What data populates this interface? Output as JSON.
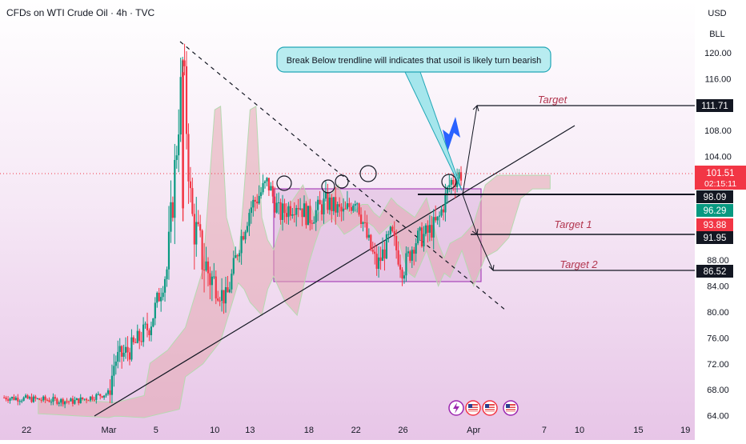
{
  "header": {
    "title": "CFDs on WTI Crude Oil · 4h · TVC"
  },
  "currency": {
    "primary": "USD",
    "secondary": "BLL"
  },
  "chart_data": {
    "type": "candlestick",
    "y_ticks": [
      "120.00",
      "116.00",
      "112.00",
      "108.00",
      "104.00",
      "100.00",
      "96.00",
      "92.00",
      "88.00",
      "84.00",
      "80.00",
      "76.00",
      "72.00",
      "68.00",
      "64.00"
    ],
    "x_ticks": [
      {
        "label": "22",
        "day": -7
      },
      {
        "label": "Mar",
        "day": 0
      },
      {
        "label": "5",
        "day": 4
      },
      {
        "label": "10",
        "day": 9
      },
      {
        "label": "13",
        "day": 12
      },
      {
        "label": "18",
        "day": 17
      },
      {
        "label": "22",
        "day": 21
      },
      {
        "label": "26",
        "day": 25
      },
      {
        "label": "Apr",
        "day": 31
      },
      {
        "label": "7",
        "day": 37
      },
      {
        "label": "10",
        "day": 40
      },
      {
        "label": "15",
        "day": 45
      },
      {
        "label": "19",
        "day": 49
      }
    ],
    "ylim": [
      63.5,
      122.5
    ],
    "price_tags": {
      "current": {
        "price": "101.51",
        "timer": "02:15:11",
        "value": 101.51
      },
      "target": {
        "label": "111.71",
        "value": 111.71
      },
      "p98": {
        "label": "98.09",
        "value": 98.09
      },
      "p96": {
        "label": "96.29",
        "value": 96.29
      },
      "p93": {
        "label": "93.88",
        "value": 93.88
      },
      "p91": {
        "label": "91.95",
        "value": 91.95
      },
      "p86": {
        "label": "86.52",
        "value": 86.52
      }
    },
    "annotations": {
      "callout": "Break Below trendline will indicates that usoil is likely turn bearish",
      "target": "Target",
      "target1": "Target 1",
      "target2": "Target 2"
    },
    "key_points": [
      {
        "day": -8.9,
        "value": 66.8
      },
      {
        "day": -3,
        "value": 66.2
      },
      {
        "day": 0,
        "value": 67.5
      },
      {
        "day": 0.5,
        "value": 72.5
      },
      {
        "day": 2,
        "value": 74.5
      },
      {
        "day": 3.5,
        "value": 78
      },
      {
        "day": 5,
        "value": 87
      },
      {
        "day": 6.3,
        "value": 119
      },
      {
        "day": 7,
        "value": 95
      },
      {
        "day": 8,
        "value": 88
      },
      {
        "day": 9,
        "value": 84
      },
      {
        "day": 10,
        "value": 82
      },
      {
        "day": 11,
        "value": 90
      },
      {
        "day": 12,
        "value": 96
      },
      {
        "day": 13.5,
        "value": 100
      },
      {
        "day": 14.5,
        "value": 95
      },
      {
        "day": 16,
        "value": 97
      },
      {
        "day": 17,
        "value": 94.5
      },
      {
        "day": 18.5,
        "value": 97
      },
      {
        "day": 20,
        "value": 95
      },
      {
        "day": 21,
        "value": 98
      },
      {
        "day": 22,
        "value": 91
      },
      {
        "day": 22.8,
        "value": 87
      },
      {
        "day": 24,
        "value": 92
      },
      {
        "day": 25,
        "value": 86.5
      },
      {
        "day": 26,
        "value": 91
      },
      {
        "day": 27,
        "value": 92
      },
      {
        "day": 28,
        "value": 94
      },
      {
        "day": 29,
        "value": 100
      },
      {
        "day": 30,
        "value": 101.5
      }
    ]
  }
}
